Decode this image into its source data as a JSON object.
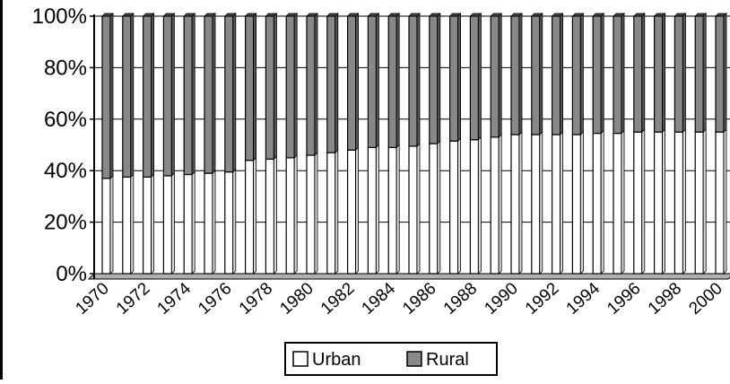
{
  "chart_data": {
    "type": "bar",
    "stacked": true,
    "percent_scale": true,
    "categories": [
      "1970",
      "1971",
      "1972",
      "1973",
      "1974",
      "1975",
      "1976",
      "1977",
      "1978",
      "1979",
      "1980",
      "1981",
      "1982",
      "1983",
      "1984",
      "1985",
      "1986",
      "1987",
      "1988",
      "1989",
      "1990",
      "1991",
      "1992",
      "1993",
      "1994",
      "1995",
      "1996",
      "1997",
      "1998",
      "1999",
      "2000"
    ],
    "x_tick_labels": [
      "1970",
      "1972",
      "1974",
      "1976",
      "1978",
      "1980",
      "1982",
      "1984",
      "1986",
      "1988",
      "1990",
      "1992",
      "1994",
      "1996",
      "1998",
      "2000"
    ],
    "series": [
      {
        "name": "Urban",
        "color": "#ffffff",
        "values": [
          37,
          37.5,
          37.5,
          38,
          38.5,
          39,
          39.5,
          44,
          44.5,
          45,
          46,
          47,
          48,
          49,
          49,
          49.5,
          50.5,
          51.5,
          52,
          53,
          54,
          54,
          54,
          54,
          54.5,
          54.5,
          55,
          55,
          55,
          55,
          55
        ]
      },
      {
        "name": "Rural",
        "color": "#888888",
        "values": [
          63,
          62.5,
          62.5,
          62,
          61.5,
          61,
          60.5,
          56,
          55.5,
          55,
          54,
          53,
          52,
          51,
          51,
          50.5,
          49.5,
          48.5,
          48,
          47,
          46,
          46,
          46,
          46,
          45.5,
          45.5,
          45,
          45,
          45,
          45,
          45
        ]
      }
    ],
    "y_tick_labels": [
      "0%",
      "20%",
      "40%",
      "60%",
      "80%",
      "100%"
    ],
    "ylim": [
      0,
      100
    ],
    "grid": true,
    "legend_position": "bottom"
  }
}
